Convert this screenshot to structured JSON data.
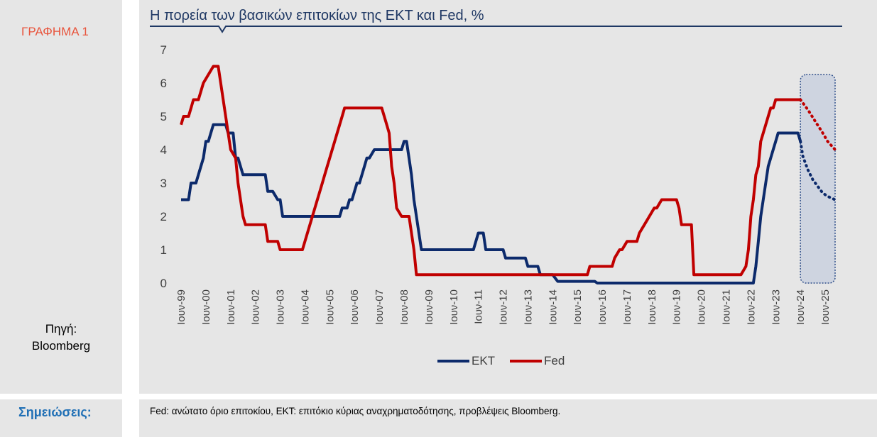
{
  "figure_label": "ΓΡΑΦΗΜΑ 1",
  "source": {
    "line1": "Πηγή:",
    "line2": "Bloomberg"
  },
  "notes": {
    "label": "Σημειώσεις:",
    "text": "Fed: ανώτατο όριο επιτοκίου, ΕΚΤ: επιτόκιο κύριας αναχρηματοδότησης, προβλέψεις Bloomberg."
  },
  "colors": {
    "ekt": "#0c2a6b",
    "fed": "#c00000",
    "forecast_fill": "#c8d0de",
    "title_rule": "#1f3864"
  },
  "chart_data": {
    "type": "line",
    "title": "Η πορεία των βασικών επιτοκίων της ΕΚΤ και Fed, %",
    "xlabel": "",
    "ylabel": "",
    "ylim": [
      0,
      7
    ],
    "yticks": [
      0,
      1,
      2,
      3,
      4,
      5,
      6,
      7
    ],
    "x_range": [
      1999.5,
      2025.9
    ],
    "xtick_labels": [
      "Ιουν-99",
      "Ιουν-00",
      "Ιουν-01",
      "Ιουν-02",
      "Ιουν-03",
      "Ιουν-04",
      "Ιουν-05",
      "Ιουν-06",
      "Ιουν-07",
      "Ιουν-08",
      "Ιουν-09",
      "Ιουν-10",
      "Ιουν-11",
      "Ιουν-12",
      "Ιουν-13",
      "Ιουν-14",
      "Ιουν-15",
      "Ιουν-16",
      "Ιουν-17",
      "Ιουν-18",
      "Ιουν-19",
      "Ιουν-20",
      "Ιουν-21",
      "Ιουν-22",
      "Ιουν-23",
      "Ιουν-24",
      "Ιουν-25"
    ],
    "legend_position": "bottom",
    "forecast_region": [
      2024.5,
      2025.9
    ],
    "series": [
      {
        "name": "ΕΚΤ",
        "x": [
          1999.5,
          1999.8,
          1999.9,
          2000.1,
          2000.2,
          2000.3,
          2000.4,
          2000.5,
          2000.6,
          2000.7,
          2000.8,
          2001.3,
          2001.4,
          2001.6,
          2001.7,
          2001.8,
          2002.0,
          2002.9,
          2003.0,
          2003.2,
          2003.4,
          2003.5,
          2003.6,
          2005.9,
          2006.0,
          2006.2,
          2006.3,
          2006.4,
          2006.5,
          2006.6,
          2006.7,
          2006.8,
          2006.9,
          2007.0,
          2007.1,
          2007.3,
          2007.4,
          2007.5,
          2008.4,
          2008.5,
          2008.6,
          2008.7,
          2008.8,
          2008.9,
          2009.0,
          2009.1,
          2009.2,
          2009.3,
          2009.4,
          2011.3,
          2011.4,
          2011.5,
          2011.7,
          2011.8,
          2011.9,
          2012.5,
          2012.6,
          2013.4,
          2013.5,
          2013.9,
          2014.0,
          2014.5,
          2014.6,
          2014.7,
          2016.2,
          2016.3,
          2022.6,
          2022.7,
          2022.8,
          2022.9,
          2023.0,
          2023.1,
          2023.2,
          2023.3,
          2023.4,
          2023.5,
          2023.6,
          2023.7,
          2024.4,
          2024.5,
          2024.6,
          2024.8,
          2025.0,
          2025.2,
          2025.4,
          2025.6,
          2025.9
        ],
        "values": [
          2.5,
          2.5,
          3.0,
          3.0,
          3.25,
          3.5,
          3.75,
          4.25,
          4.25,
          4.5,
          4.75,
          4.75,
          4.5,
          4.5,
          3.75,
          3.75,
          3.25,
          3.25,
          2.75,
          2.75,
          2.5,
          2.5,
          2.0,
          2.0,
          2.25,
          2.25,
          2.5,
          2.5,
          2.75,
          3.0,
          3.0,
          3.25,
          3.5,
          3.75,
          3.75,
          4.0,
          4.0,
          4.0,
          4.0,
          4.25,
          4.25,
          3.75,
          3.25,
          2.5,
          2.0,
          1.5,
          1.0,
          1.0,
          1.0,
          1.0,
          1.25,
          1.5,
          1.5,
          1.0,
          1.0,
          1.0,
          0.75,
          0.75,
          0.5,
          0.5,
          0.25,
          0.25,
          0.15,
          0.05,
          0.05,
          0.0,
          0.0,
          0.5,
          1.25,
          2.0,
          2.5,
          3.0,
          3.5,
          3.75,
          4.0,
          4.25,
          4.5,
          4.5,
          4.5,
          4.25,
          3.8,
          3.4,
          3.1,
          2.9,
          2.7,
          2.6,
          2.5
        ]
      },
      {
        "name": "Fed",
        "x": [
          1999.5,
          1999.6,
          1999.8,
          1999.9,
          2000.0,
          2000.2,
          2000.3,
          2000.4,
          2000.8,
          2001.0,
          2001.1,
          2001.2,
          2001.3,
          2001.4,
          2001.5,
          2001.7,
          2001.8,
          2001.9,
          2002.0,
          2002.1,
          2002.2,
          2002.9,
          2003.0,
          2003.4,
          2003.5,
          2004.4,
          2004.5,
          2004.6,
          2004.7,
          2004.8,
          2004.9,
          2005.0,
          2005.1,
          2005.2,
          2005.3,
          2005.4,
          2005.5,
          2005.6,
          2005.7,
          2005.8,
          2005.9,
          2006.0,
          2006.1,
          2006.2,
          2006.3,
          2006.4,
          2006.5,
          2007.6,
          2007.7,
          2007.8,
          2007.9,
          2008.0,
          2008.1,
          2008.2,
          2008.4,
          2008.7,
          2008.9,
          2009.0,
          2015.9,
          2016.0,
          2016.9,
          2017.0,
          2017.2,
          2017.3,
          2017.5,
          2017.9,
          2018.0,
          2018.2,
          2018.4,
          2018.6,
          2018.7,
          2018.9,
          2019.0,
          2019.5,
          2019.6,
          2019.7,
          2019.8,
          2020.1,
          2020.2,
          2022.1,
          2022.3,
          2022.4,
          2022.5,
          2022.6,
          2022.7,
          2022.8,
          2022.9,
          2023.0,
          2023.1,
          2023.2,
          2023.3,
          2023.4,
          2023.5,
          2023.6,
          2024.5,
          2024.8,
          2025.1,
          2025.4,
          2025.6,
          2025.9
        ],
        "values": [
          4.75,
          5.0,
          5.0,
          5.25,
          5.5,
          5.5,
          5.75,
          6.0,
          6.5,
          6.5,
          6.0,
          5.5,
          5.0,
          4.5,
          4.0,
          3.75,
          3.0,
          2.5,
          2.0,
          1.75,
          1.75,
          1.75,
          1.25,
          1.25,
          1.0,
          1.0,
          1.25,
          1.5,
          1.75,
          2.0,
          2.25,
          2.5,
          2.75,
          3.0,
          3.25,
          3.5,
          3.75,
          4.0,
          4.25,
          4.5,
          4.75,
          5.0,
          5.25,
          5.25,
          5.25,
          5.25,
          5.25,
          5.25,
          5.0,
          4.75,
          4.5,
          3.5,
          3.0,
          2.25,
          2.0,
          2.0,
          1.0,
          0.25,
          0.25,
          0.5,
          0.5,
          0.75,
          1.0,
          1.0,
          1.25,
          1.25,
          1.5,
          1.75,
          2.0,
          2.25,
          2.25,
          2.5,
          2.5,
          2.5,
          2.25,
          1.75,
          1.75,
          1.75,
          0.25,
          0.25,
          0.5,
          1.0,
          2.0,
          2.5,
          3.25,
          3.5,
          4.25,
          4.5,
          4.75,
          5.0,
          5.25,
          5.25,
          5.5,
          5.5,
          5.5,
          5.2,
          4.85,
          4.5,
          4.25,
          4.0
        ]
      }
    ]
  }
}
